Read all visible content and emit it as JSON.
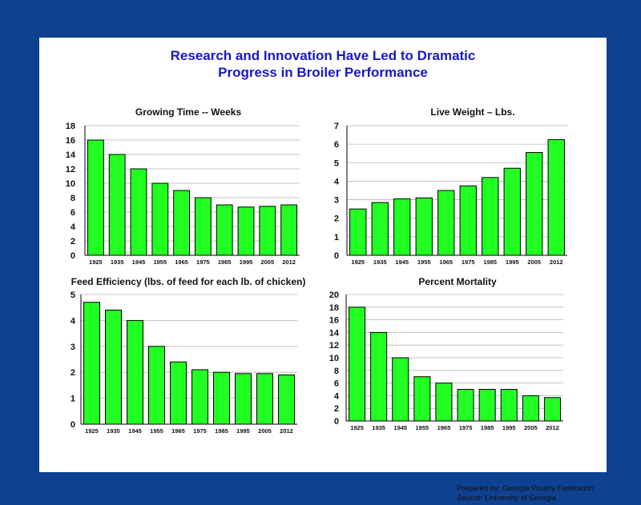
{
  "header": {
    "title_line1": "Research and Innovation Have Led to Dramatic",
    "title_line2": "Progress in Broiler Performance"
  },
  "credits": {
    "prepared": "Prepared by:  Georgia Poultry Federation",
    "source": "Source:  University of Georgia"
  },
  "colors": {
    "background": "#0f4191",
    "title": "#1818c8",
    "bar": "#22ff22",
    "bar_stroke": "#000000",
    "grid": "#b4b4b4"
  },
  "chart_data": [
    {
      "type": "bar",
      "title": "Growing Time -- Weeks",
      "categories": [
        "1925",
        "1935",
        "1945",
        "1955",
        "1965",
        "1975",
        "1985",
        "1995",
        "2005",
        "2012"
      ],
      "values": [
        16,
        14,
        12,
        10,
        9,
        8,
        7,
        6.7,
        6.8,
        7
      ],
      "ylim": [
        0,
        18
      ],
      "yticks": [
        0,
        2,
        4,
        6,
        8,
        10,
        12,
        14,
        16,
        18
      ],
      "grid": true
    },
    {
      "type": "bar",
      "title": "Live Weight – Lbs.",
      "categories": [
        "1925",
        "1935",
        "1945",
        "1955",
        "1965",
        "1975",
        "1985",
        "1995",
        "2005",
        "2012"
      ],
      "values": [
        2.5,
        2.85,
        3.05,
        3.1,
        3.5,
        3.75,
        4.2,
        4.7,
        5.55,
        6.25
      ],
      "ylim": [
        0,
        7
      ],
      "yticks": [
        0,
        1,
        2,
        3,
        4,
        5,
        6,
        7
      ],
      "grid": true
    },
    {
      "type": "bar",
      "title": "Feed Efficiency (lbs. of feed for each lb. of chicken)",
      "categories": [
        "1925",
        "1935",
        "1945",
        "1955",
        "1965",
        "1975",
        "1985",
        "1995",
        "2005",
        "2012"
      ],
      "values": [
        4.7,
        4.4,
        4.0,
        3.0,
        2.4,
        2.1,
        2.0,
        1.95,
        1.95,
        1.9
      ],
      "ylim": [
        0,
        5
      ],
      "yticks": [
        0,
        1,
        2,
        3,
        4,
        5
      ],
      "grid": true
    },
    {
      "type": "bar",
      "title": "Percent Mortality",
      "categories": [
        "1925",
        "1935",
        "1945",
        "1955",
        "1965",
        "1975",
        "1985",
        "1995",
        "2005",
        "2012"
      ],
      "values": [
        18,
        14,
        10,
        7,
        6,
        5,
        5,
        5,
        4,
        3.7
      ],
      "ylim": [
        0,
        20
      ],
      "yticks": [
        0,
        2,
        4,
        6,
        8,
        10,
        12,
        14,
        16,
        18,
        20
      ],
      "grid": true
    }
  ]
}
